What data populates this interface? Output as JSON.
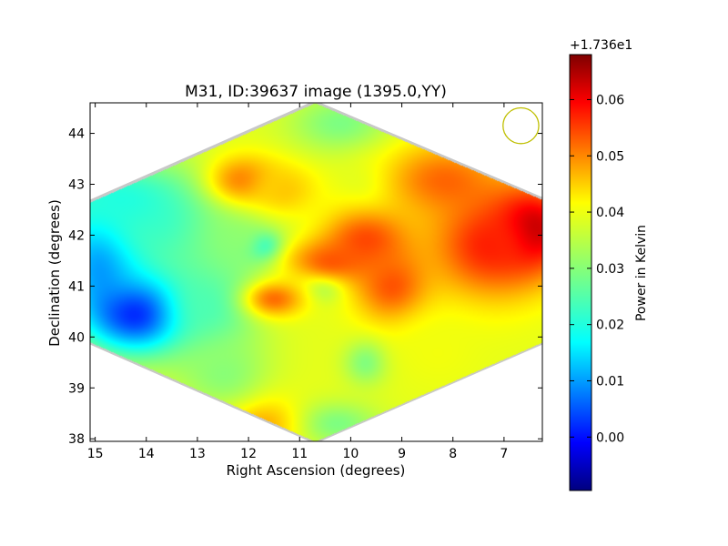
{
  "chart_data": {
    "type": "heatmap",
    "title": "M31, ID:39637 image (1395.0,YY)",
    "xlabel": "Right Ascension (degrees)",
    "ylabel": "Declination (degrees)",
    "xlim": [
      15.1,
      6.25
    ],
    "ylim": [
      37.95,
      44.6
    ],
    "x_ticks": [
      15,
      14,
      13,
      12,
      11,
      10,
      9,
      8,
      7
    ],
    "x_tick_labels": [
      "15",
      "14",
      "13",
      "12",
      "11",
      "10",
      "9",
      "8",
      "7"
    ],
    "y_ticks": [
      38,
      39,
      40,
      41,
      42,
      43,
      44
    ],
    "y_tick_labels": [
      "38",
      "39",
      "40",
      "41",
      "42",
      "43",
      "44"
    ],
    "colorbar": {
      "label": "Power in Kelvin",
      "offset_text": "+1.736e1",
      "range": [
        -0.0095,
        0.068
      ],
      "ticks": [
        0.0,
        0.01,
        0.02,
        0.03,
        0.04,
        0.05,
        0.06
      ],
      "tick_labels": [
        "0.00",
        "0.01",
        "0.02",
        "0.03",
        "0.04",
        "0.05",
        "0.06"
      ],
      "colormap": "jet"
    },
    "footprint": {
      "shape": "diamond",
      "corners": [
        {
          "ra": 10.7,
          "dec": 44.6
        },
        {
          "ra": 6.25,
          "dec": 42.7
        },
        {
          "ra": 6.25,
          "dec": 39.9
        },
        {
          "ra": 10.7,
          "dec": 37.95
        },
        {
          "ra": 15.1,
          "dec": 39.9
        },
        {
          "ra": 15.1,
          "dec": 42.65
        }
      ]
    },
    "beam": {
      "ra": 6.67,
      "dec": 44.15,
      "radius_deg": 0.35,
      "color": "#bfbf00"
    },
    "background_value": 0.037,
    "features": [
      {
        "ra": 14.1,
        "dec": 40.55,
        "value": -0.0045,
        "sigma_ra": 0.75,
        "sigma_dec": 0.55
      },
      {
        "ra": 14.8,
        "dec": 41.6,
        "value": 0.005,
        "sigma_ra": 0.6,
        "sigma_dec": 0.8
      },
      {
        "ra": 13.6,
        "dec": 42.2,
        "value": 0.024,
        "sigma_ra": 1.2,
        "sigma_dec": 0.8
      },
      {
        "ra": 14.5,
        "dec": 42.7,
        "value": 0.022,
        "sigma_ra": 0.8,
        "sigma_dec": 0.4
      },
      {
        "ra": 12.8,
        "dec": 40.7,
        "value": 0.025,
        "sigma_ra": 0.7,
        "sigma_dec": 0.8
      },
      {
        "ra": 11.75,
        "dec": 41.8,
        "value": 0.014,
        "sigma_ra": 0.25,
        "sigma_dec": 0.2
      },
      {
        "ra": 12.3,
        "dec": 42.0,
        "value": 0.03,
        "sigma_ra": 0.6,
        "sigma_dec": 0.6
      },
      {
        "ra": 10.5,
        "dec": 41.1,
        "value": 0.027,
        "sigma_ra": 0.3,
        "sigma_dec": 0.25
      },
      {
        "ra": 10.4,
        "dec": 41.5,
        "value": 0.051,
        "sigma_ra": 0.6,
        "sigma_dec": 0.3
      },
      {
        "ra": 9.7,
        "dec": 41.9,
        "value": 0.053,
        "sigma_ra": 0.6,
        "sigma_dec": 0.45
      },
      {
        "ra": 9.2,
        "dec": 41.0,
        "value": 0.052,
        "sigma_ra": 0.5,
        "sigma_dec": 0.5
      },
      {
        "ra": 11.5,
        "dec": 40.75,
        "value": 0.05,
        "sigma_ra": 0.4,
        "sigma_dec": 0.25
      },
      {
        "ra": 12.1,
        "dec": 43.1,
        "value": 0.049,
        "sigma_ra": 0.5,
        "sigma_dec": 0.35
      },
      {
        "ra": 11.3,
        "dec": 42.9,
        "value": 0.043,
        "sigma_ra": 0.5,
        "sigma_dec": 0.4
      },
      {
        "ra": 10.2,
        "dec": 44.2,
        "value": 0.029,
        "sigma_ra": 0.7,
        "sigma_dec": 0.4
      },
      {
        "ra": 9.6,
        "dec": 43.1,
        "value": 0.035,
        "sigma_ra": 0.4,
        "sigma_dec": 0.3
      },
      {
        "ra": 8.2,
        "dec": 43.1,
        "value": 0.05,
        "sigma_ra": 0.8,
        "sigma_dec": 0.5
      },
      {
        "ra": 6.5,
        "dec": 42.1,
        "value": 0.068,
        "sigma_ra": 0.55,
        "sigma_dec": 0.55
      },
      {
        "ra": 7.3,
        "dec": 41.8,
        "value": 0.056,
        "sigma_ra": 0.8,
        "sigma_dec": 0.7
      },
      {
        "ra": 9.7,
        "dec": 39.5,
        "value": 0.029,
        "sigma_ra": 0.3,
        "sigma_dec": 0.3
      },
      {
        "ra": 10.3,
        "dec": 38.3,
        "value": 0.029,
        "sigma_ra": 0.6,
        "sigma_dec": 0.3
      },
      {
        "ra": 11.8,
        "dec": 38.3,
        "value": 0.046,
        "sigma_ra": 0.5,
        "sigma_dec": 0.4
      },
      {
        "ra": 12.5,
        "dec": 39.3,
        "value": 0.03,
        "sigma_ra": 0.6,
        "sigma_dec": 0.5
      },
      {
        "ra": 8.3,
        "dec": 39.7,
        "value": 0.038,
        "sigma_ra": 0.6,
        "sigma_dec": 0.5
      }
    ]
  }
}
